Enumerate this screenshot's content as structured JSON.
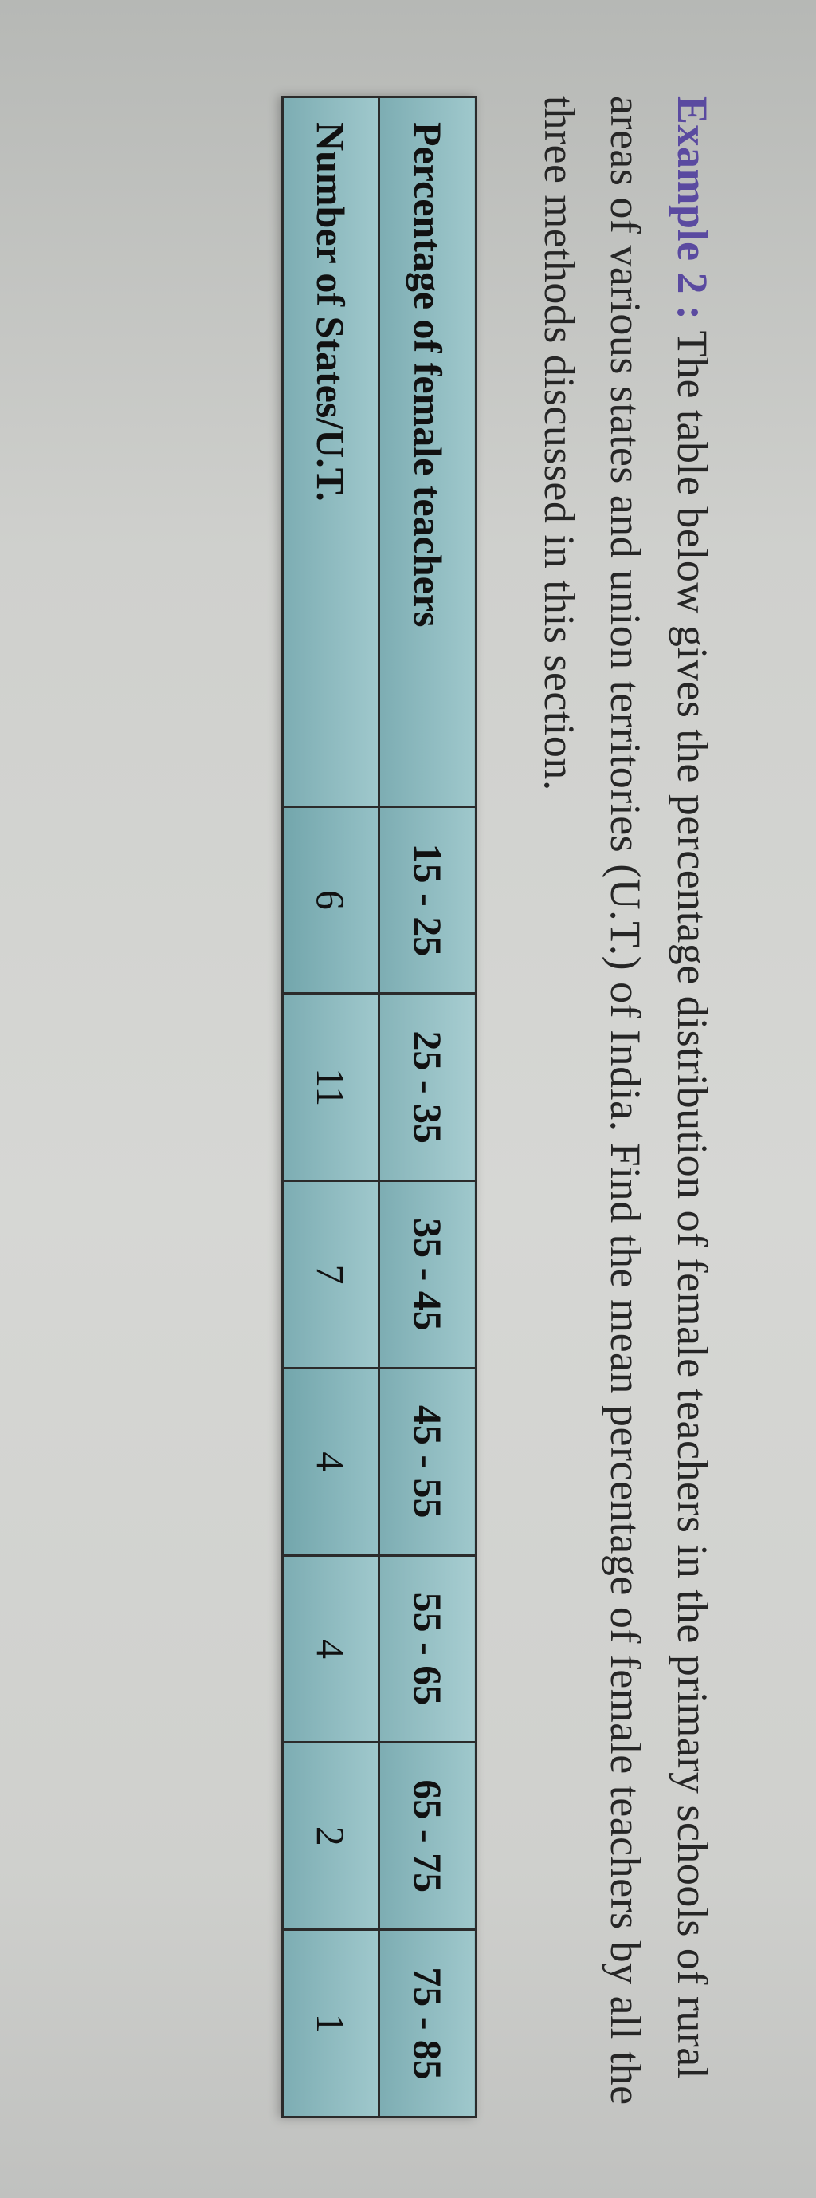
{
  "paragraph": {
    "example_label": "Example 2 :",
    "text": " The table below gives the percentage distribution of female teachers in the primary schools of rural areas of various states and union territories (U.T.) of India. Find the mean percentage of female teachers by all the three methods discussed in this section."
  },
  "table": {
    "type": "table",
    "background_color": "#8cbac0",
    "border_color": "#2b2b2b",
    "header_font_weight": "bold",
    "cell_fontsize_pt": 38,
    "row_header_width_pct": 22,
    "columns": [
      "15 - 25",
      "25 - 35",
      "35 - 45",
      "45 - 55",
      "55 - 65",
      "65 - 75",
      "75 - 85"
    ],
    "rows": [
      {
        "label": "Percentage of female teachers",
        "values": [
          "15 - 25",
          "25 - 35",
          "35 - 45",
          "45 - 55",
          "55 - 65",
          "65 - 75",
          "75 - 85"
        ]
      },
      {
        "label": "Number of States/U.T.",
        "values": [
          "6",
          "11",
          "7",
          "4",
          "4",
          "2",
          "1"
        ]
      }
    ]
  },
  "colors": {
    "page_bg": "#c8c9c7",
    "text": "#262626",
    "accent": "#5a4aa0",
    "table_cell_bg_light": "#9fc8cc",
    "table_cell_bg_dark": "#7dadb3"
  },
  "typography": {
    "body_font": "Georgia, Times New Roman, serif",
    "body_size_pt": 40,
    "line_height": 1.55
  }
}
